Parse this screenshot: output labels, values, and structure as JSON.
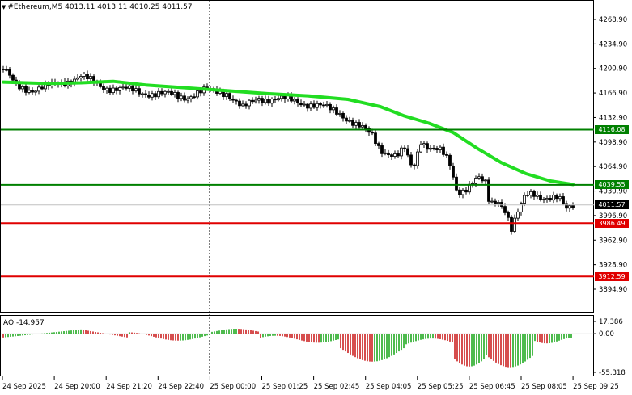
{
  "header": {
    "symbol_line": "#Ethereum,M5  4013.11 4013.11 4010.25 4011.57"
  },
  "ao_header": "AO -14.957",
  "price_axis": {
    "ticks": [
      "4268.90",
      "4234.90",
      "4200.90",
      "4166.90",
      "4132.90",
      "4098.90",
      "4064.90",
      "4030.90",
      "3996.90",
      "3962.90",
      "3928.90",
      "3894.90"
    ]
  },
  "ao_axis": {
    "ticks": [
      "17.386",
      "0.00",
      "-55.318"
    ]
  },
  "time_axis": {
    "ticks": [
      "24 Sep 2025",
      "24 Sep 20:00",
      "24 Sep 21:20",
      "24 Sep 22:40",
      "25 Sep 00:00",
      "25 Sep 01:25",
      "25 Sep 02:45",
      "25 Sep 04:05",
      "25 Sep 05:25",
      "25 Sep 06:45",
      "25 Sep 08:05",
      "25 Sep 09:25"
    ]
  },
  "levels": [
    {
      "label": "4116.08",
      "color": "#008000"
    },
    {
      "label": "4039.55",
      "color": "#008000"
    },
    {
      "label": "4011.57",
      "color": "#000000"
    },
    {
      "label": "3986.49",
      "color": "#e00000"
    },
    {
      "label": "3912.59",
      "color": "#e00000"
    }
  ],
  "colors": {
    "ma": "#22dd22",
    "ao_up": "#22aa22",
    "ao_down": "#cc2222"
  },
  "chart_data": {
    "type": "candlestick",
    "series_ma_color": "#22dd22",
    "price_ylim": [
      3894.9,
      4268.9
    ],
    "ao_ylim": [
      -55.318,
      17.386
    ]
  }
}
